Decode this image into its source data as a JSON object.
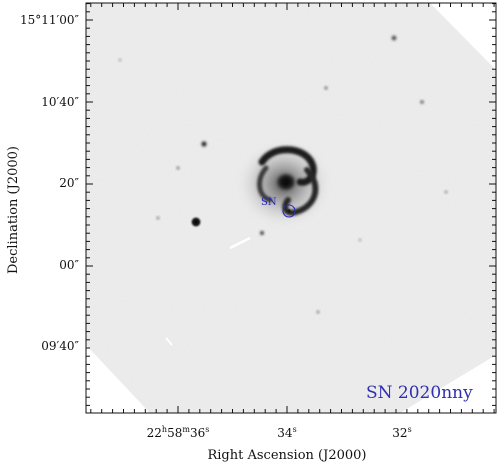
{
  "figure": {
    "object_label": "SN 2020nny",
    "marker_label": "SN",
    "accent_color": "#2a2ab8",
    "x_axis": {
      "title": "Right Ascension (J2000)",
      "ticks": [
        {
          "pre": "22",
          "sup1": "h",
          "mid": "58",
          "sup2": "m",
          "post": "36",
          "sup3": "s"
        },
        {
          "pre": "34",
          "sup1": "s"
        },
        {
          "pre": "32",
          "sup1": "s"
        }
      ]
    },
    "y_axis": {
      "title": "Declination (J2000)",
      "ticks": [
        "15°11′00″",
        "10′40″",
        "20″",
        "00″",
        "09′40″"
      ]
    }
  }
}
